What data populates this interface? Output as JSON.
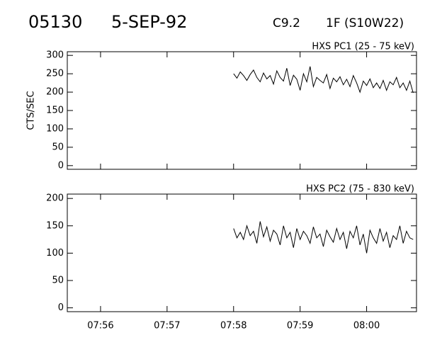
{
  "header": {
    "id": "05130",
    "date": "5-SEP-92",
    "class": "C9.2",
    "location": "1F (S10W22)"
  },
  "chart_data": [
    {
      "type": "line",
      "title": "HXS PC1 (25 - 75 keV)",
      "ylabel": "CTS/SEC",
      "color": "#000000",
      "x": [
        3480,
        3483,
        3486,
        3489,
        3492,
        3495,
        3498,
        3501,
        3504,
        3507,
        3510,
        3513,
        3516,
        3519,
        3522,
        3525,
        3528,
        3531,
        3534,
        3537,
        3540,
        3543,
        3546,
        3549,
        3552,
        3555,
        3558,
        3561,
        3564,
        3567,
        3570,
        3573,
        3576,
        3579,
        3582,
        3585,
        3588,
        3591,
        3594,
        3597,
        3600,
        3603,
        3606,
        3609,
        3612,
        3615,
        3618,
        3621,
        3624,
        3627,
        3630,
        3633,
        3636,
        3639,
        3642
      ],
      "values": [
        250,
        238,
        255,
        245,
        232,
        248,
        260,
        240,
        228,
        252,
        236,
        245,
        222,
        258,
        240,
        230,
        265,
        218,
        246,
        235,
        205,
        250,
        228,
        270,
        215,
        240,
        232,
        225,
        248,
        210,
        238,
        228,
        242,
        220,
        235,
        215,
        245,
        225,
        200,
        230,
        218,
        236,
        212,
        225,
        210,
        232,
        205,
        228,
        220,
        240,
        212,
        225,
        205,
        230,
        198
      ],
      "xlim": [
        3330,
        3645
      ],
      "ylim": [
        -10,
        310
      ],
      "xticks": [
        3360,
        3420,
        3480,
        3540,
        3600
      ],
      "yticks": [
        0,
        50,
        100,
        150,
        200,
        250,
        300
      ]
    },
    {
      "type": "line",
      "title": "HXS PC2 (75 - 830 keV)",
      "color": "#000000",
      "x": [
        3480,
        3483,
        3486,
        3489,
        3492,
        3495,
        3498,
        3501,
        3504,
        3507,
        3510,
        3513,
        3516,
        3519,
        3522,
        3525,
        3528,
        3531,
        3534,
        3537,
        3540,
        3543,
        3546,
        3549,
        3552,
        3555,
        3558,
        3561,
        3564,
        3567,
        3570,
        3573,
        3576,
        3579,
        3582,
        3585,
        3588,
        3591,
        3594,
        3597,
        3600,
        3603,
        3606,
        3609,
        3612,
        3615,
        3618,
        3621,
        3624,
        3627,
        3630,
        3633,
        3636,
        3639,
        3642
      ],
      "values": [
        145,
        128,
        138,
        125,
        150,
        132,
        140,
        118,
        158,
        130,
        148,
        122,
        142,
        135,
        115,
        150,
        128,
        138,
        110,
        145,
        125,
        140,
        132,
        118,
        148,
        128,
        135,
        112,
        142,
        130,
        120,
        145,
        125,
        138,
        108,
        140,
        128,
        150,
        115,
        135,
        100,
        142,
        128,
        118,
        145,
        122,
        138,
        110,
        132,
        125,
        150,
        118,
        140,
        128,
        125
      ],
      "xlim": [
        3330,
        3645
      ],
      "ylim": [
        -7,
        208
      ],
      "xticks": [
        {
          "value": 3360,
          "label": "07:56"
        },
        {
          "value": 3420,
          "label": "07:57"
        },
        {
          "value": 3480,
          "label": "07:58"
        },
        {
          "value": 3540,
          "label": "07:59"
        },
        {
          "value": 3600,
          "label": "08:00"
        }
      ],
      "yticks": [
        0,
        50,
        100,
        150,
        200
      ]
    }
  ]
}
